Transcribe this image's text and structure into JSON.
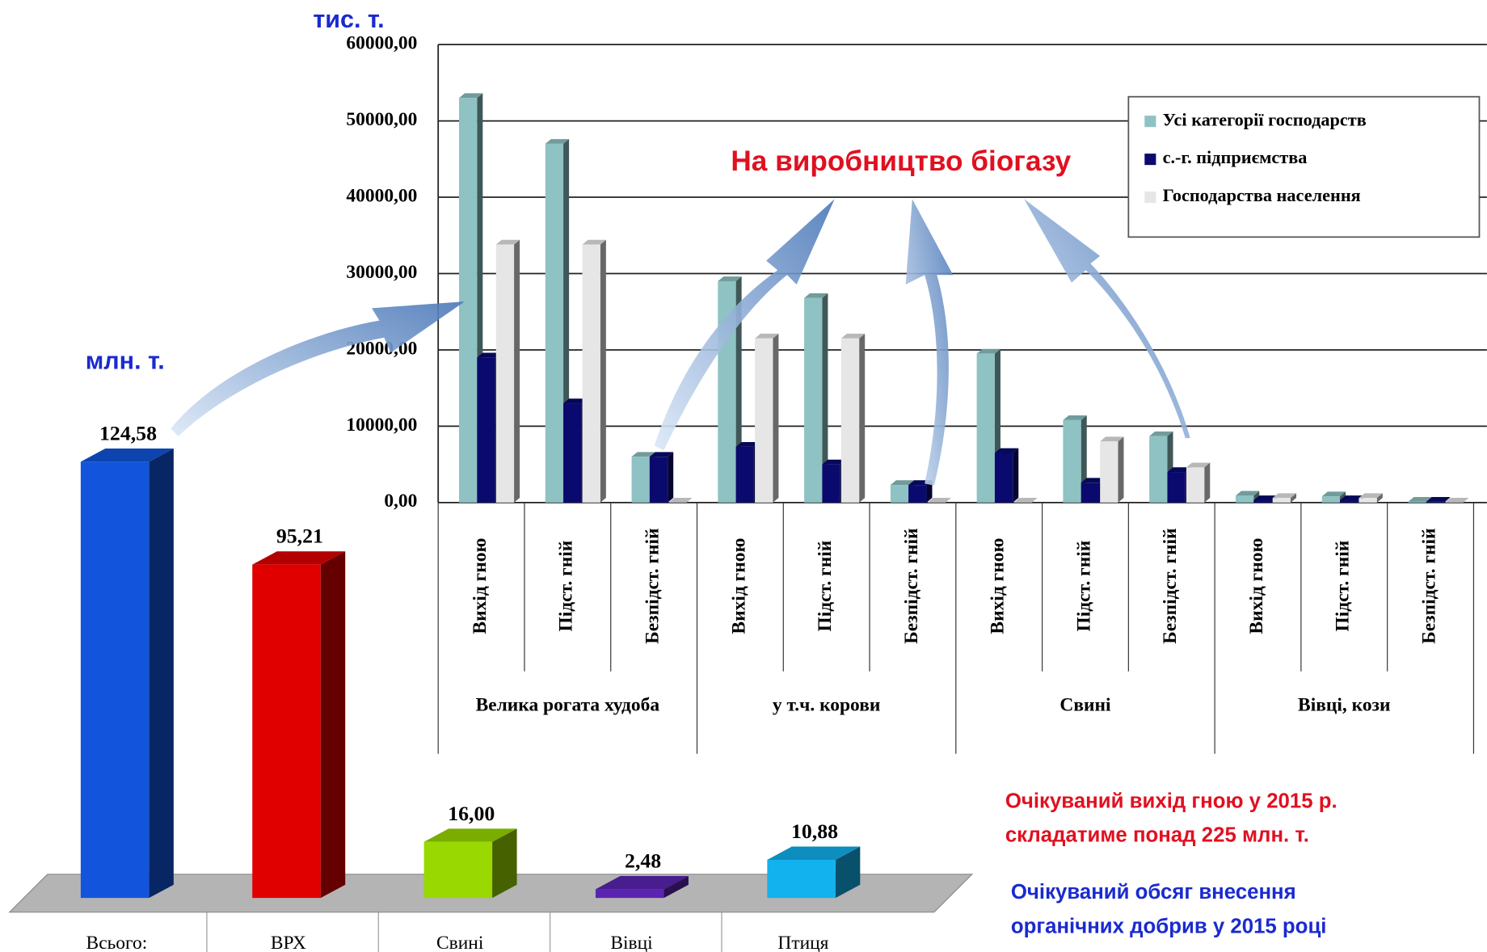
{
  "chart_data": [
    {
      "type": "bar3d",
      "ylabel": "млн. т.",
      "categories": [
        "Всього:",
        "ВРХ",
        "Свині",
        "Вівці",
        "Птиця"
      ],
      "values": [
        124.58,
        95.21,
        16.0,
        2.48,
        10.88
      ],
      "value_labels": [
        "124,58",
        "95,21",
        "16,00",
        "2,48",
        "10,88"
      ],
      "colors": [
        "#1255dc",
        "#e00000",
        "#99d800",
        "#5a24b0",
        "#12b2ee"
      ]
    },
    {
      "type": "grouped_bar3d",
      "ylabel": "тис. т.",
      "annotation": "На виробництво біогазу",
      "categories": [
        "Вихід гною",
        "Підст. гній",
        "Безпідст. гній",
        "Вихід гною",
        "Підст. гній",
        "Безпідст. гній",
        "Вихід гною",
        "Підст. гній",
        "Безпідст. гній",
        "Вихід гною",
        "Підст. гній",
        "Безпідст. гній"
      ],
      "groups": [
        "Велика рогата худоба",
        "у т.ч. корови",
        "Свині",
        "Вівці, кози"
      ],
      "series": [
        {
          "name": "Усі категорії господарств",
          "color": "#8fc2c2",
          "values": [
            53000,
            47000,
            6000,
            29000,
            26800,
            2300,
            19500,
            10800,
            8700,
            900,
            800,
            100
          ]
        },
        {
          "name": "с.-г. підприємства",
          "color": "#0a0a6e",
          "values": [
            19000,
            13000,
            6000,
            7300,
            5000,
            2300,
            6500,
            2600,
            4000,
            300,
            300,
            100
          ]
        },
        {
          "name": "Господарства населення",
          "color": "#e6e6e6",
          "values": [
            33800,
            33800,
            0,
            21500,
            21500,
            0,
            0,
            8000,
            4600,
            600,
            600,
            0
          ]
        }
      ],
      "ylim": [
        0,
        60000
      ],
      "yticks": [
        {
          "value": 0,
          "label": "0,00"
        },
        {
          "value": 10000,
          "label": "10000,00"
        },
        {
          "value": 20000,
          "label": "20000,00"
        },
        {
          "value": 30000,
          "label": "30000,00"
        },
        {
          "value": 40000,
          "label": "40000,00"
        },
        {
          "value": 50000,
          "label": "50000,00"
        },
        {
          "value": 60000,
          "label": "60000,00"
        }
      ],
      "grid": true,
      "legend": "upper right"
    },
    {
      "type": "text",
      "lines": [
        "Очікуваний вихід гною у 2015 р.",
        "складатиме понад 225 млн. т.",
        "Очікуваний обсяг внесення",
        "органічних добрив у 2015 році"
      ],
      "colors": [
        "#e01020",
        "#e01020",
        "#1a2ad0",
        "#1a2ad0"
      ]
    }
  ]
}
